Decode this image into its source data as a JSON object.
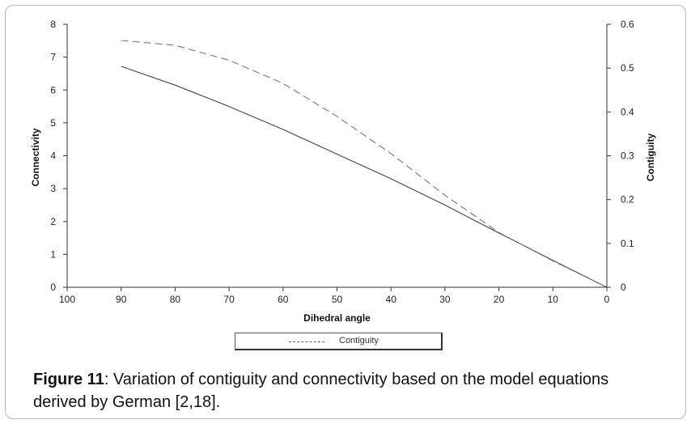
{
  "chart_data": {
    "type": "line",
    "xlabel": "Dihedral angle",
    "ylabel_left": "Connectivity",
    "ylabel_right": "Contiguity",
    "xlim": [
      100,
      0
    ],
    "x_reversed": true,
    "ylim_left": [
      0,
      8
    ],
    "ylim_right": [
      0,
      0.6
    ],
    "x_ticks": [
      "100",
      "90",
      "80",
      "70",
      "60",
      "50",
      "40",
      "30",
      "20",
      "10",
      "0"
    ],
    "y_left_ticks": [
      "0",
      "1",
      "2",
      "3",
      "4",
      "5",
      "6",
      "7",
      "8"
    ],
    "y_right_ticks": [
      "0",
      "0.1",
      "0.2",
      "0.3",
      "0.4",
      "0.5",
      "0.6"
    ],
    "grid": false,
    "legend_position": "bottom-center",
    "series": [
      {
        "axis": "left",
        "style": "solid",
        "color": "#444444",
        "x": [
          90,
          80,
          70,
          60,
          50,
          40,
          30,
          20,
          10,
          0
        ],
        "y": [
          6.72,
          6.15,
          5.5,
          4.8,
          4.05,
          3.3,
          2.5,
          1.65,
          0.82,
          0
        ]
      },
      {
        "name": "Contiguity",
        "axis": "right",
        "style": "dashed",
        "color": "#777777",
        "x": [
          90,
          80,
          70,
          60,
          50,
          40,
          30,
          20,
          10,
          0
        ],
        "y": [
          0.563,
          0.552,
          0.518,
          0.465,
          0.39,
          0.305,
          0.21,
          0.125,
          0.06,
          0
        ]
      }
    ]
  },
  "caption": {
    "label": "Figure 11",
    "text": ": Variation of contiguity and connectivity based on the model equations derived by German [2,18]."
  }
}
